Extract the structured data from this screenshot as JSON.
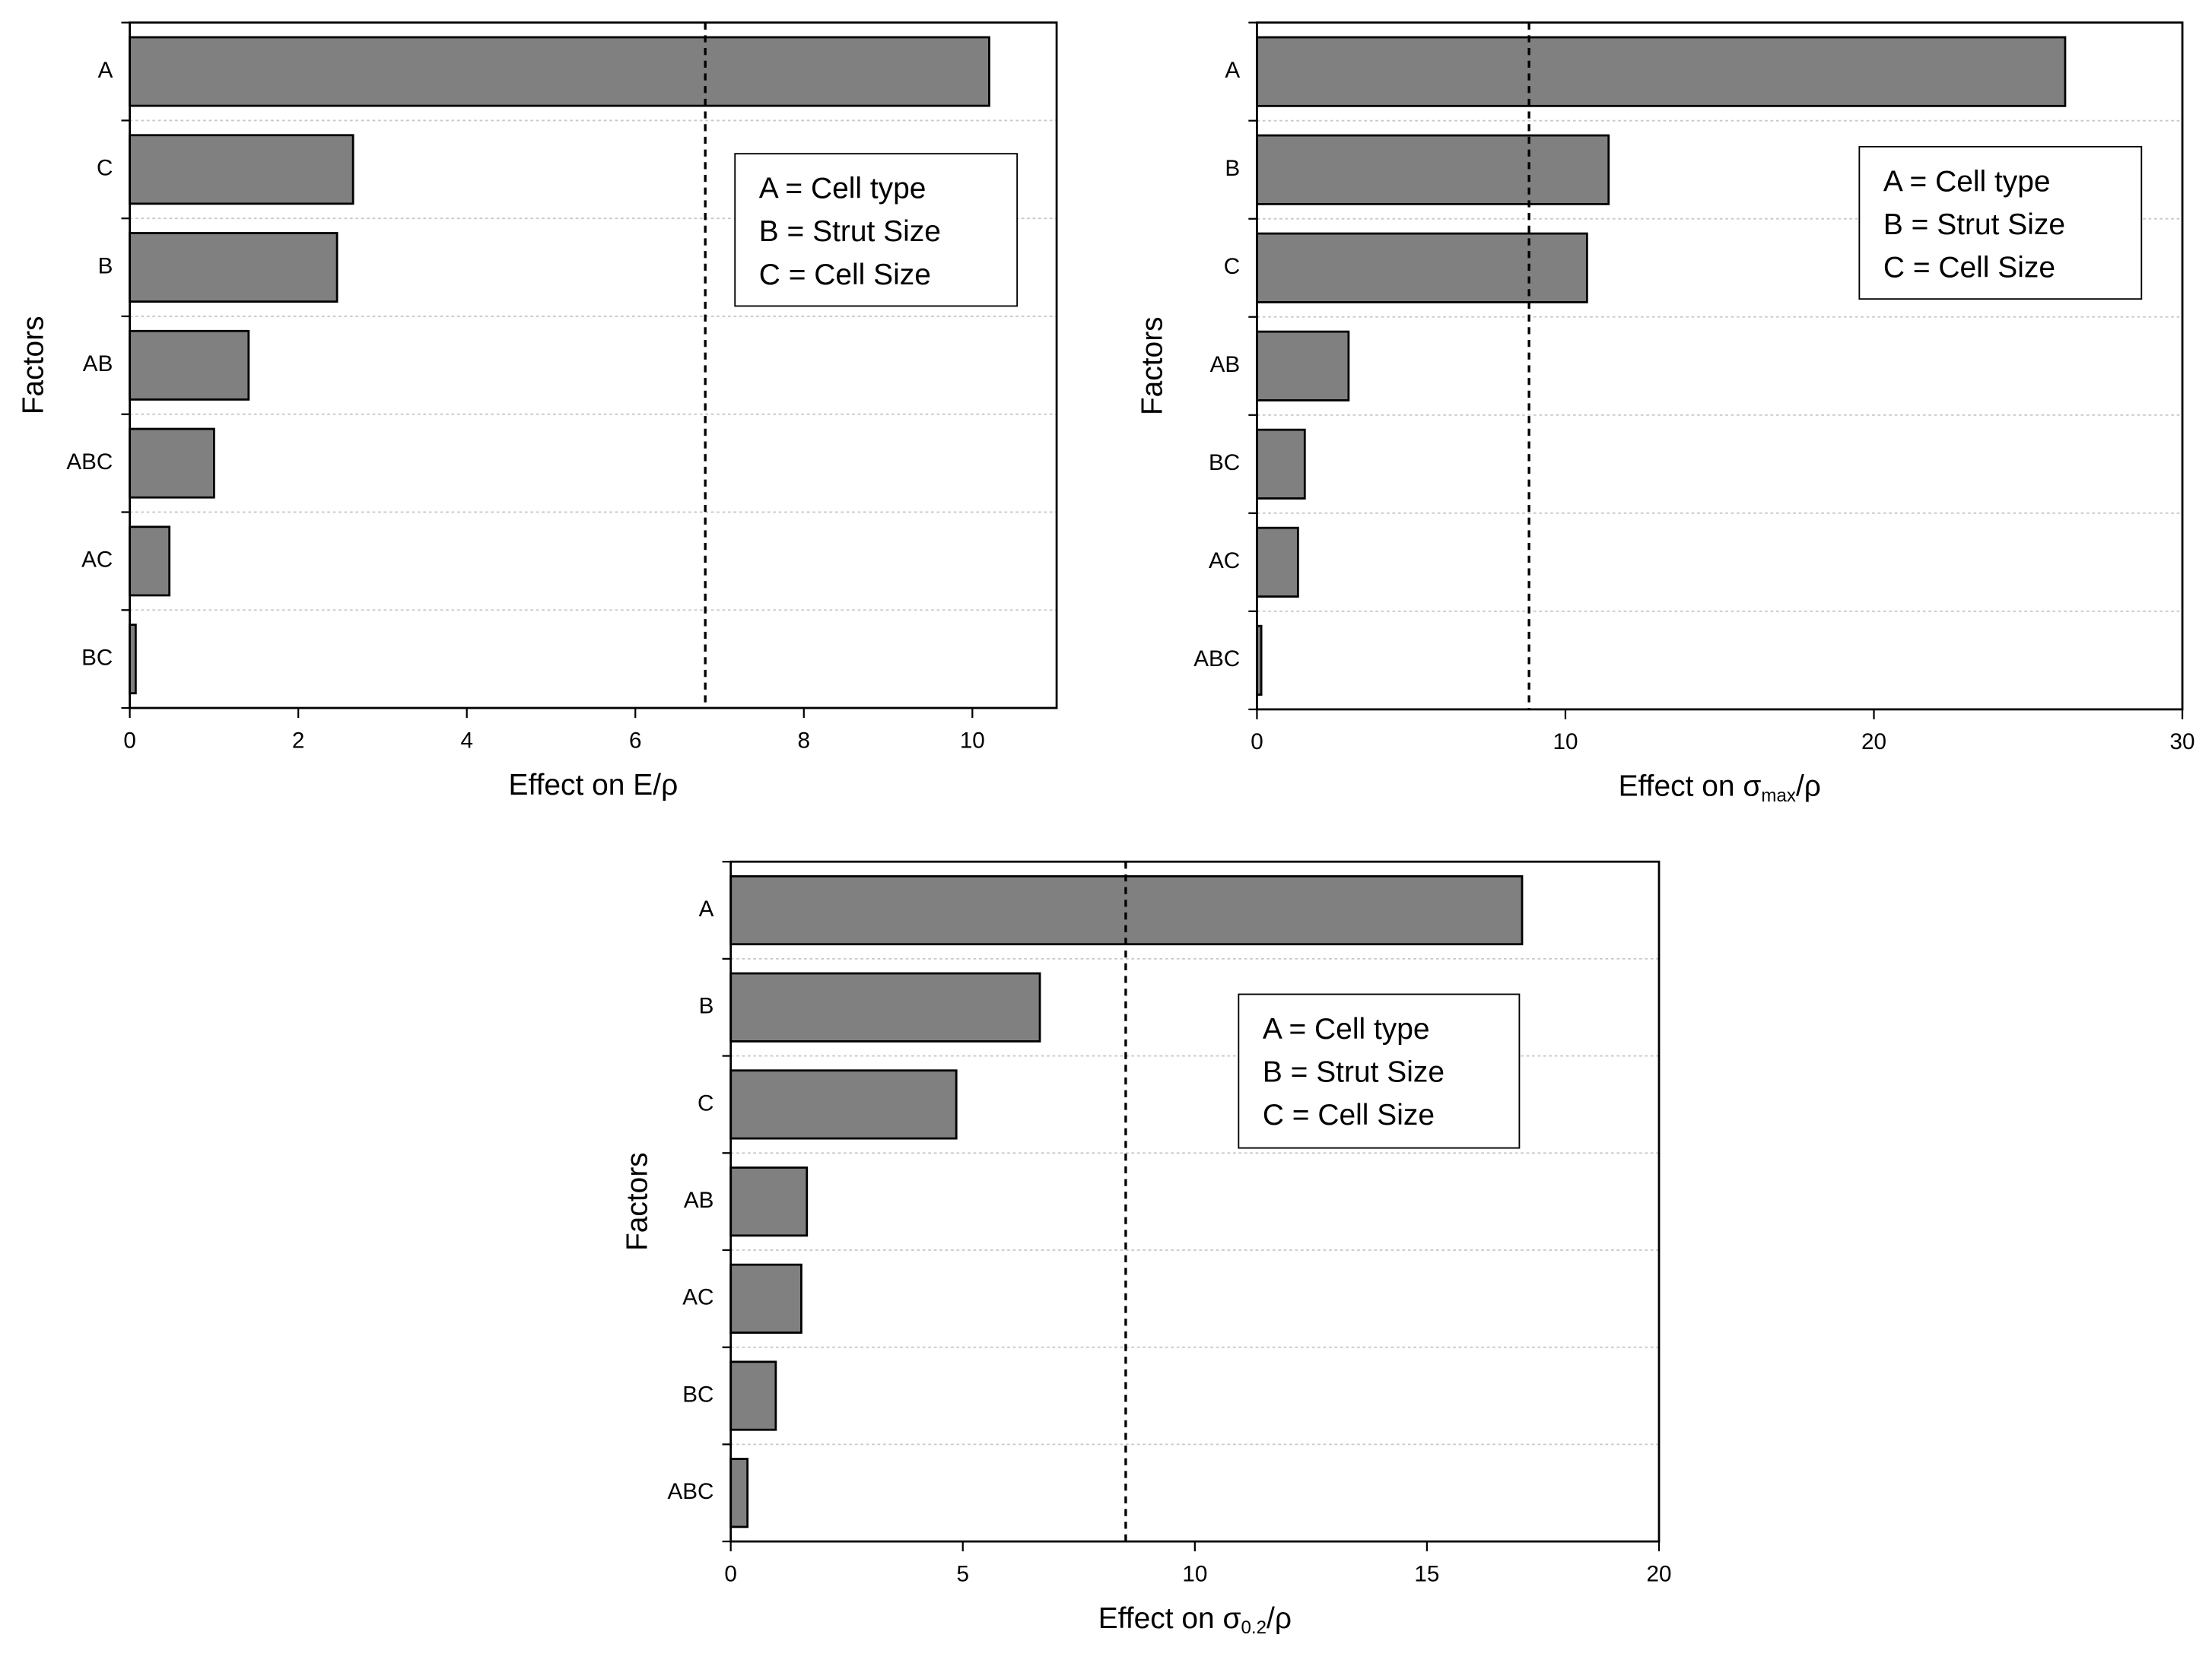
{
  "chart_data": [
    {
      "type": "hbar",
      "ylabel": "Factors",
      "xlabel": [
        {
          "text": "Effect on E/ρ"
        }
      ],
      "categories": [
        "A",
        "C",
        "B",
        "AB",
        "ABC",
        "AC",
        "BC"
      ],
      "values": [
        10.2,
        2.65,
        2.46,
        1.41,
        1.0,
        0.47,
        0.07
      ],
      "color": "#808080",
      "threshold": 6.83,
      "xlim": [
        0,
        11
      ],
      "xticks": [
        0,
        2,
        4,
        6,
        8,
        10
      ],
      "grid": true,
      "legend_text": [
        "A = Cell type",
        "B = Strut Size",
        "C = Cell Size"
      ]
    },
    {
      "type": "hbar",
      "ylabel": "Factors",
      "xlabel": [
        {
          "text": "Effect on σ"
        },
        {
          "text": "max",
          "sub": true
        },
        {
          "text": "/ρ"
        }
      ],
      "categories": [
        "A",
        "B",
        "C",
        "AB",
        "BC",
        "AC",
        "ABC"
      ],
      "values": [
        26.2,
        11.4,
        10.7,
        2.97,
        1.55,
        1.33,
        0.14
      ],
      "color": "#808080",
      "threshold": 8.82,
      "xlim": [
        0,
        30
      ],
      "xticks": [
        0,
        10,
        20,
        30
      ],
      "grid": true,
      "legend_text": [
        "A = Cell type",
        "B = Strut Size",
        "C = Cell Size"
      ]
    },
    {
      "type": "hbar",
      "ylabel": "Factors",
      "xlabel": [
        {
          "text": "Effect on σ"
        },
        {
          "text": "0.2",
          "sub": true
        },
        {
          "text": "/ρ"
        }
      ],
      "categories": [
        "A",
        "B",
        "C",
        "AB",
        "AC",
        "BC",
        "ABC"
      ],
      "values": [
        17.05,
        6.66,
        4.86,
        1.64,
        1.52,
        0.97,
        0.36
      ],
      "color": "#808080",
      "threshold": 8.51,
      "xlim": [
        0,
        20
      ],
      "xticks": [
        0,
        5,
        10,
        15,
        20
      ],
      "grid": true,
      "legend_text": [
        "A = Cell type",
        "B = Strut Size",
        "C = Cell Size"
      ]
    }
  ]
}
